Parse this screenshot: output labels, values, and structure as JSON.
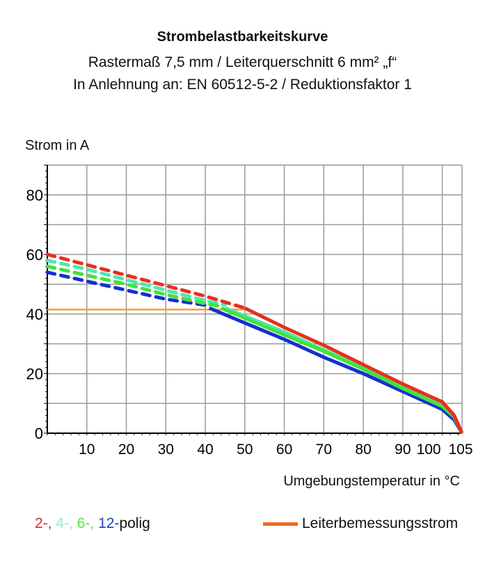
{
  "chart_data": {
    "type": "line",
    "title": "Strombelastbarkeitskurve",
    "subtitle_lines": [
      "Rastermaß 7,5 mm / Leiterquerschnitt 6 mm² „f“",
      "In Anlehnung an: EN 60512-5-2 / Reduktionsfaktor 1"
    ],
    "ylabel": "Strom in A",
    "xlabel": "Umgebungstemperatur in °C",
    "xlim": [
      0,
      105
    ],
    "ylim": [
      0,
      90
    ],
    "xticks": [
      10,
      20,
      30,
      40,
      50,
      60,
      70,
      80,
      90,
      100,
      105
    ],
    "yticks": [
      0,
      20,
      40,
      60,
      80
    ],
    "grid": true,
    "series": [
      {
        "name": "2-",
        "color": "#e8301c",
        "dashed": [
          [
            0,
            60
          ],
          [
            10,
            56.5
          ],
          [
            20,
            53
          ],
          [
            30,
            49.5
          ],
          [
            40,
            46
          ],
          [
            50,
            42
          ]
        ],
        "solid": [
          [
            50,
            42
          ],
          [
            60,
            35.5
          ],
          [
            70,
            29.5
          ],
          [
            80,
            23
          ],
          [
            90,
            16.5
          ],
          [
            100,
            10.5
          ],
          [
            103,
            6
          ],
          [
            105,
            0
          ]
        ]
      },
      {
        "name": "4-",
        "color": "#4de8b0",
        "dashed": [
          [
            0,
            58
          ],
          [
            10,
            55
          ],
          [
            20,
            51.5
          ],
          [
            30,
            48
          ],
          [
            40,
            44.5
          ],
          [
            45,
            43
          ]
        ],
        "solid": [
          [
            45,
            42
          ],
          [
            60,
            34
          ],
          [
            70,
            28
          ],
          [
            80,
            22
          ],
          [
            90,
            15.5
          ],
          [
            100,
            9.5
          ],
          [
            103,
            5.5
          ],
          [
            105,
            0
          ]
        ]
      },
      {
        "name": "6-",
        "color": "#44e23a",
        "dashed": [
          [
            0,
            56
          ],
          [
            10,
            53
          ],
          [
            20,
            50
          ],
          [
            30,
            46.5
          ],
          [
            40,
            43.5
          ],
          [
            44,
            42.5
          ]
        ],
        "solid": [
          [
            44,
            42
          ],
          [
            60,
            33
          ],
          [
            70,
            27.5
          ],
          [
            80,
            21.5
          ],
          [
            90,
            15
          ],
          [
            100,
            9
          ],
          [
            103,
            5.5
          ],
          [
            105,
            0
          ]
        ]
      },
      {
        "name": "12-",
        "color": "#1530d0",
        "dashed": [
          [
            0,
            54
          ],
          [
            10,
            51
          ],
          [
            20,
            48
          ],
          [
            30,
            45
          ],
          [
            40,
            43
          ]
        ],
        "solid": [
          [
            41,
            42
          ],
          [
            50,
            37
          ],
          [
            60,
            31.5
          ],
          [
            70,
            25.5
          ],
          [
            80,
            20
          ],
          [
            90,
            14
          ],
          [
            100,
            8
          ],
          [
            103,
            4.5
          ],
          [
            105,
            0
          ]
        ]
      },
      {
        "name": "Leiterbemessungsstrom",
        "color": "#f5a030",
        "solid": [
          [
            0,
            41.5
          ],
          [
            50,
            41.5
          ]
        ]
      }
    ],
    "legend": {
      "poles": [
        "2-,",
        "4-,",
        "6-,",
        "12-"
      ],
      "poles_suffix": "polig",
      "rated_current_label": "Leiterbemessungsstrom",
      "rated_current_color": "#f06a1a",
      "placement": "bottom"
    }
  }
}
